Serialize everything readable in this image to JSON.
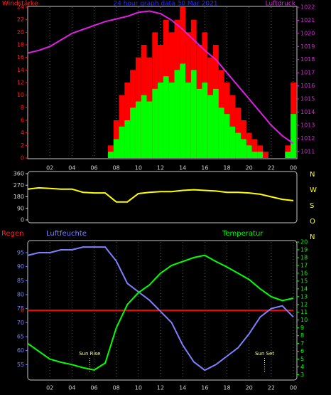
{
  "chart_data": [
    {
      "type": "bar",
      "title": "24 hour graph data  30 Mar 2021",
      "y_label": "Windstärke",
      "y2_label": "Luftdruck",
      "x": [
        0,
        0.5,
        1,
        1.5,
        2,
        2.5,
        3,
        3.5,
        4,
        4.5,
        5,
        5.5,
        6,
        6.5,
        7,
        7.5,
        8,
        8.5,
        9,
        9.5,
        10,
        10.5,
        11,
        11.5,
        12,
        12.5,
        13,
        13.5,
        14,
        14.5,
        15,
        15.5,
        16,
        16.5,
        17,
        17.5,
        18,
        18.5,
        19,
        19.5,
        20,
        20.5,
        21,
        21.5,
        22,
        22.5,
        23,
        23.5,
        24
      ],
      "xlim": [
        0,
        24
      ],
      "xticks": [
        {
          "value": 2,
          "label": "02"
        },
        {
          "value": 4,
          "label": "04"
        },
        {
          "value": 6,
          "label": "06"
        },
        {
          "value": 8,
          "label": "08"
        },
        10,
        12,
        14,
        16,
        18,
        20,
        22,
        {
          "value": 24,
          "label": "00"
        }
      ],
      "ylim": [
        0,
        24
      ],
      "yticks": [
        0,
        2,
        4,
        6,
        8,
        10,
        12,
        14,
        16,
        18,
        20,
        22,
        24
      ],
      "y2lim": [
        1010.5,
        1022
      ],
      "y2ticks": [
        1011,
        1012,
        1013,
        1014,
        1015,
        1016,
        1017,
        1018,
        1019,
        1020,
        1021,
        1022
      ],
      "grid": true,
      "series": [
        {
          "color": "#ff0000",
          "values": [
            0,
            0,
            0,
            0,
            0,
            0,
            0,
            0,
            0,
            0,
            0,
            0,
            0,
            0,
            0,
            2,
            6,
            10,
            12,
            14,
            16,
            18,
            16,
            20,
            18,
            22,
            20,
            22,
            24,
            20,
            22,
            18,
            20,
            16,
            18,
            14,
            12,
            10,
            8,
            6,
            4,
            3,
            2,
            1,
            0,
            0,
            0,
            2,
            12
          ]
        },
        {
          "color": "#00ff00",
          "values": [
            0,
            0,
            0,
            0,
            0,
            0,
            0,
            0,
            0,
            0,
            0,
            0,
            0,
            0,
            0,
            1,
            3,
            5,
            6,
            8,
            9,
            10,
            9,
            11,
            12,
            13,
            12,
            14,
            15,
            12,
            14,
            11,
            12,
            10,
            11,
            8,
            7,
            5,
            4,
            3,
            2,
            1,
            1,
            0,
            0,
            0,
            0,
            1,
            7
          ]
        },
        {
          "type": "line",
          "axis": "y2",
          "color": "#e020e0",
          "x": [
            0,
            1,
            2,
            3,
            4,
            5,
            6,
            7,
            8,
            9,
            10,
            11,
            12,
            13,
            14,
            15,
            16,
            17,
            18,
            19,
            20,
            21,
            22,
            23,
            24
          ],
          "values": [
            1018.5,
            1018.7,
            1019,
            1019.5,
            1020,
            1020.3,
            1020.6,
            1020.9,
            1021.1,
            1021.3,
            1021.6,
            1021.7,
            1021.5,
            1021,
            1020.3,
            1019.5,
            1018.7,
            1018,
            1017,
            1016,
            1015,
            1014,
            1013,
            1012.2,
            1011.6
          ]
        }
      ]
    },
    {
      "type": "line",
      "x": [
        0,
        1,
        2,
        3,
        4,
        5,
        6,
        7,
        8,
        9,
        10,
        11,
        12,
        13,
        14,
        15,
        16,
        17,
        18,
        19,
        20,
        21,
        22,
        23,
        24
      ],
      "xlim": [
        0,
        24
      ],
      "ylim": [
        0,
        360
      ],
      "yticks": [
        0,
        90,
        180,
        270,
        360
      ],
      "y2lim": [
        0,
        360
      ],
      "y2ticks": [
        {
          "value": 0,
          "label": "N"
        },
        {
          "value": 90,
          "label": "O"
        },
        {
          "value": 180,
          "label": "S"
        },
        {
          "value": 270,
          "label": "W"
        },
        {
          "value": 360,
          "label": "N"
        }
      ],
      "series": [
        {
          "color": "#ffff00",
          "values": [
            240,
            250,
            245,
            240,
            240,
            215,
            210,
            210,
            140,
            140,
            205,
            215,
            220,
            220,
            230,
            235,
            230,
            225,
            215,
            215,
            210,
            200,
            180,
            160,
            150
          ]
        }
      ]
    },
    {
      "type": "line",
      "x": [
        0,
        1,
        2,
        3,
        4,
        5,
        6,
        7,
        8,
        9,
        10,
        11,
        12,
        13,
        14,
        15,
        16,
        17,
        18,
        19,
        20,
        21,
        22,
        23,
        24
      ],
      "xlim": [
        0,
        24
      ],
      "xticks": [
        {
          "value": 2,
          "label": "02"
        },
        {
          "value": 4,
          "label": "04"
        },
        {
          "value": 6,
          "label": "06"
        },
        {
          "value": 8,
          "label": "08"
        },
        10,
        12,
        14,
        16,
        18,
        20,
        22,
        {
          "value": 24,
          "label": "00"
        }
      ],
      "ylim": [
        50,
        98.8
      ],
      "yticks": [
        55,
        60,
        65,
        70,
        75,
        80,
        85,
        90,
        95
      ],
      "y2lim": [
        2.5,
        20
      ],
      "y2ticks": [
        3,
        4,
        5,
        6,
        7,
        8,
        9,
        10,
        11,
        12,
        13,
        14,
        15,
        16,
        17,
        18,
        19,
        20
      ],
      "y3lim": [
        -5,
        5
      ],
      "y3ticks": [
        0
      ],
      "grid": true,
      "series": [
        {
          "name": "Regen",
          "axis": "y3",
          "color": "#ff0000",
          "values": [
            0,
            0,
            0,
            0,
            0,
            0,
            0,
            0,
            0,
            0,
            0,
            0,
            0,
            0,
            0,
            0,
            0,
            0,
            0,
            0,
            0,
            0,
            0,
            0,
            0
          ]
        },
        {
          "name": "Luftfeuchte",
          "color": "#8080ff",
          "values": [
            94,
            95,
            95,
            96,
            96,
            97,
            97,
            97,
            92,
            84,
            81,
            78,
            74,
            70,
            62,
            56,
            53,
            55,
            58,
            61,
            66,
            72,
            75,
            76,
            72
          ]
        },
        {
          "name": "Temperatur",
          "axis": "y2",
          "color": "#00ff00",
          "values": [
            7,
            6,
            5,
            4.6,
            4.3,
            3.9,
            3.6,
            4.5,
            9,
            12,
            13.5,
            14.5,
            16,
            17,
            17.5,
            18,
            18.3,
            17.5,
            16.8,
            16,
            15.2,
            14,
            13,
            12.5,
            12.8
          ]
        }
      ],
      "annotations": [
        {
          "text": "Sun Rise",
          "x": 5.6
        },
        {
          "text": "Sun Set",
          "x": 21.4
        }
      ]
    }
  ]
}
